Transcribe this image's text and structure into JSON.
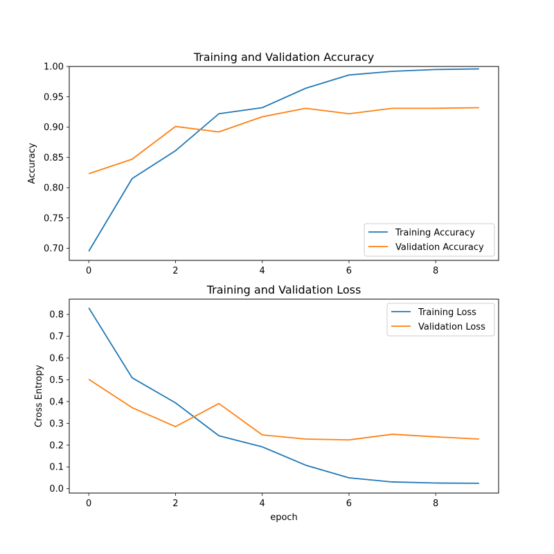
{
  "chart_data": [
    {
      "type": "line",
      "title": "Training and Validation Accuracy",
      "xlabel": "",
      "ylabel": "Accuracy",
      "x": [
        0,
        1,
        2,
        3,
        4,
        5,
        6,
        7,
        8,
        9
      ],
      "xlim": [
        -0.45,
        9.45
      ],
      "ylim": [
        0.68,
        1.0
      ],
      "xticks": [
        0,
        2,
        4,
        6,
        8
      ],
      "xtick_labels": [
        "0",
        "2",
        "4",
        "6",
        "8"
      ],
      "yticks": [
        0.7,
        0.75,
        0.8,
        0.85,
        0.9,
        0.95,
        1.0
      ],
      "ytick_labels": [
        "0.70",
        "0.75",
        "0.80",
        "0.85",
        "0.90",
        "0.95",
        "1.00"
      ],
      "legend_position": "bottom-right",
      "series": [
        {
          "name": "Training Accuracy",
          "color": "#1f77b4",
          "values": [
            0.695,
            0.815,
            0.861,
            0.922,
            0.932,
            0.964,
            0.986,
            0.992,
            0.995,
            0.996
          ]
        },
        {
          "name": "Validation Accuracy",
          "color": "#ff7f0e",
          "values": [
            0.823,
            0.847,
            0.901,
            0.892,
            0.917,
            0.931,
            0.922,
            0.931,
            0.931,
            0.932
          ]
        }
      ]
    },
    {
      "type": "line",
      "title": "Training and Validation Loss",
      "xlabel": "epoch",
      "ylabel": "Cross Entropy",
      "x": [
        0,
        1,
        2,
        3,
        4,
        5,
        6,
        7,
        8,
        9
      ],
      "xlim": [
        -0.45,
        9.45
      ],
      "ylim": [
        -0.02,
        0.87
      ],
      "xticks": [
        0,
        2,
        4,
        6,
        8
      ],
      "xtick_labels": [
        "0",
        "2",
        "4",
        "6",
        "8"
      ],
      "yticks": [
        0.0,
        0.1,
        0.2,
        0.3,
        0.4,
        0.5,
        0.6,
        0.7,
        0.8
      ],
      "ytick_labels": [
        "0.0",
        "0.1",
        "0.2",
        "0.3",
        "0.4",
        "0.5",
        "0.6",
        "0.7",
        "0.8"
      ],
      "legend_position": "top-right",
      "series": [
        {
          "name": "Training Loss",
          "color": "#1f77b4",
          "values": [
            0.83,
            0.509,
            0.394,
            0.243,
            0.192,
            0.108,
            0.05,
            0.031,
            0.026,
            0.025
          ]
        },
        {
          "name": "Validation Loss",
          "color": "#ff7f0e",
          "values": [
            0.502,
            0.372,
            0.285,
            0.391,
            0.247,
            0.228,
            0.224,
            0.25,
            0.238,
            0.228
          ]
        }
      ]
    }
  ]
}
